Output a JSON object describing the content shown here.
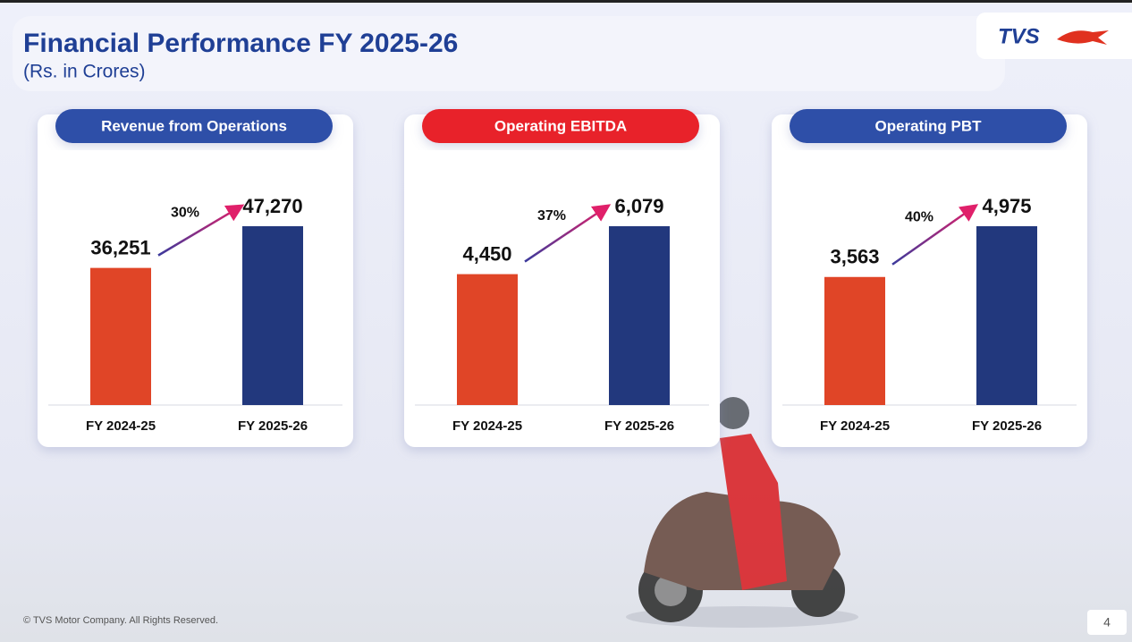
{
  "header": {
    "title": "Financial Performance FY 2025-26",
    "subtitle": "(Rs. in Crores)"
  },
  "logo": "TVS",
  "chart_data": [
    {
      "type": "bar",
      "title": "Revenue from Operations",
      "title_color": "#2f4fa8",
      "categories": [
        "FY 2024-25",
        "FY 2025-26"
      ],
      "values": [
        36251,
        47270
      ],
      "value_labels": [
        "36,251",
        "47,270"
      ],
      "colors": [
        "#e04527",
        "#22387d"
      ],
      "annotation": "30%"
    },
    {
      "type": "bar",
      "title": "Operating EBITDA",
      "title_color": "#e8202a",
      "categories": [
        "FY 2024-25",
        "FY 2025-26"
      ],
      "values": [
        4450,
        6079
      ],
      "value_labels": [
        "4,450",
        "6,079"
      ],
      "colors": [
        "#e04527",
        "#22387d"
      ],
      "annotation": "37%"
    },
    {
      "type": "bar",
      "title": "Operating PBT",
      "title_color": "#2f4fa8",
      "categories": [
        "FY 2024-25",
        "FY 2025-26"
      ],
      "values": [
        3563,
        4975
      ],
      "value_labels": [
        "3,563",
        "4,975"
      ],
      "colors": [
        "#e04527",
        "#22387d"
      ],
      "annotation": "40%"
    }
  ],
  "footer": "© TVS Motor Company. All Rights Reserved.",
  "page_number": "4"
}
